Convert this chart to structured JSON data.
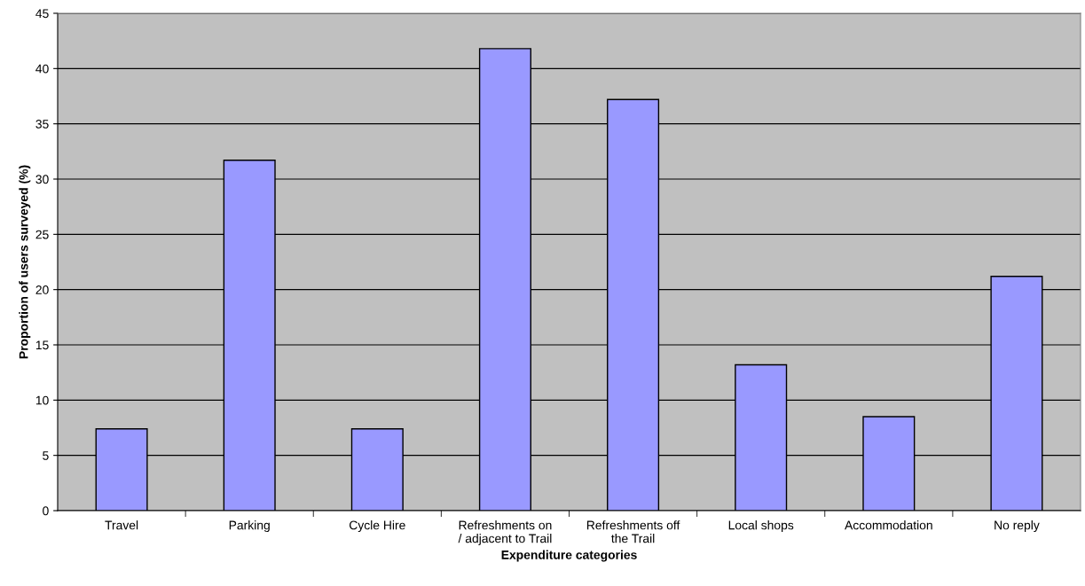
{
  "chart_data": {
    "type": "bar",
    "xlabel": "Expenditure categories",
    "ylabel": "Proportion of users surveyed (%)",
    "categories": [
      "Travel",
      "Parking",
      "Cycle Hire",
      "Refreshments on\n/ adjacent to Trail",
      "Refreshments off\nthe Trail",
      "Local shops",
      "Accommodation",
      "No reply"
    ],
    "values": [
      7.4,
      31.7,
      7.4,
      41.8,
      37.2,
      13.2,
      8.5,
      21.2
    ],
    "color": "#9999ff",
    "ylim": [
      0,
      45
    ],
    "yticks": [
      0,
      5,
      10,
      15,
      20,
      25,
      30,
      35,
      40,
      45
    ],
    "grid": "y",
    "legend": false
  }
}
